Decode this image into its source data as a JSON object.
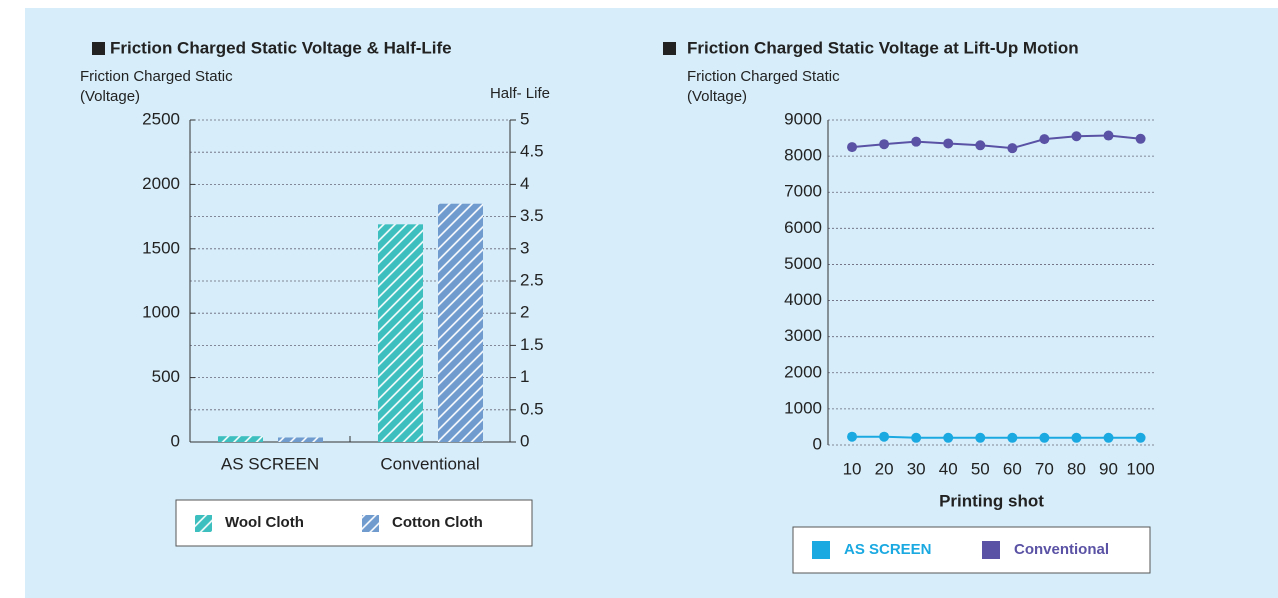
{
  "chart_data": [
    {
      "type": "bar",
      "title": "Friction Charged Static Voltage & Half-Life",
      "ylabel": [
        "Friction Charged Static",
        "(Voltage)"
      ],
      "y2label": "Half- Life",
      "categories": [
        "AS SCREEN",
        "Conventional"
      ],
      "series": [
        {
          "name": "Wool Cloth",
          "color": "#3cbfbe",
          "values": [
            45,
            1690
          ]
        },
        {
          "name": "Cotton Cloth",
          "color": "#6f9bcf",
          "values": [
            35,
            1850
          ]
        }
      ],
      "ylim": [
        0,
        2500
      ],
      "yticks": [
        0,
        500,
        1000,
        1500,
        2000,
        2500
      ],
      "y2lim": [
        0,
        5
      ],
      "y2ticks": [
        0,
        0.5,
        1,
        1.5,
        2,
        2.5,
        3,
        3.5,
        4,
        4.5,
        5
      ],
      "grid": true
    },
    {
      "type": "line",
      "title": "Friction Charged Static Voltage at Lift-Up Motion",
      "ylabel": [
        "Friction Charged Static",
        "(Voltage)"
      ],
      "xlabel": "Printing shot",
      "x": [
        10,
        20,
        30,
        40,
        50,
        60,
        70,
        80,
        90,
        100
      ],
      "series": [
        {
          "name": "AS SCREEN",
          "color": "#1ba9e1",
          "values": [
            230,
            230,
            200,
            200,
            200,
            200,
            200,
            200,
            200,
            200
          ]
        },
        {
          "name": "Conventional",
          "color": "#5a52a4",
          "values": [
            8250,
            8330,
            8400,
            8350,
            8300,
            8220,
            8470,
            8550,
            8570,
            8480
          ]
        }
      ],
      "xlim": [
        2.5,
        104.5
      ],
      "xticks": [
        10,
        20,
        30,
        40,
        50,
        60,
        70,
        80,
        90,
        100
      ],
      "ylim": [
        0,
        9000
      ],
      "yticks": [
        0,
        1000,
        2000,
        3000,
        4000,
        5000,
        6000,
        7000,
        8000,
        9000
      ],
      "grid": true
    }
  ]
}
